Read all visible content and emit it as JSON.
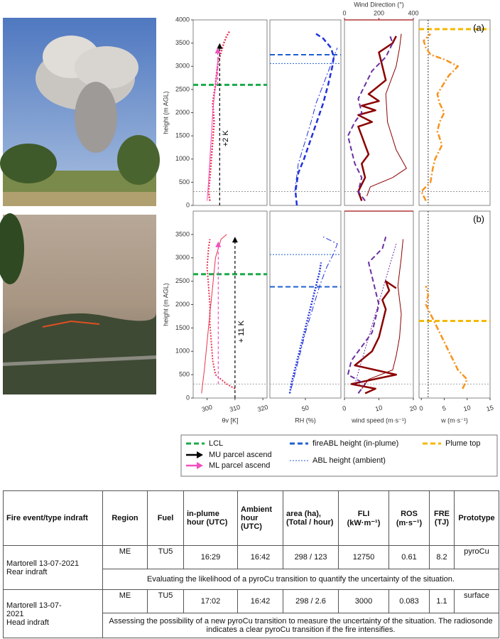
{
  "chart_data": [
    {
      "type": "profile",
      "ylim": [
        0,
        4000
      ],
      "yticks": [
        0,
        500,
        1000,
        1500,
        2000,
        2500,
        3000,
        3500,
        4000
      ],
      "ylabel": "height (m AGL)",
      "xlim": [
        295,
        321.5
      ],
      "series": [
        {
          "color": "#e8334f",
          "width": 2.5,
          "dash": "dotted",
          "values": [
            301,
            300.5,
            301,
            301.5,
            302,
            302.5,
            302,
            303,
            303.5,
            304,
            305,
            306,
            307,
            308
          ],
          "heights": [
            100,
            300,
            600,
            1000,
            1400,
            1800,
            2200,
            2600,
            2900,
            3100,
            3300,
            3500,
            3650,
            3750
          ]
        },
        {
          "color": "#f050c0",
          "width": 1,
          "dash": "solid",
          "values": [
            300,
            300.5,
            301,
            301.5,
            302,
            303,
            304
          ],
          "heights": [
            100,
            500,
            1000,
            1500,
            2000,
            2600,
            3200
          ]
        }
      ],
      "hlines": [
        {
          "value": 2600,
          "color": "#1aab4a",
          "width": 3,
          "dash": "dashed"
        },
        {
          "value": 300,
          "color": "#888",
          "width": 0.8,
          "dash": "dotted"
        }
      ],
      "arrows": [
        {
          "values": [
            304.5,
            304.5
          ],
          "heights": [
            0,
            3500
          ],
          "color": "#000",
          "label": "+2 K"
        },
        {
          "values": [
            303.8,
            303.8
          ],
          "heights": [
            2600,
            3400
          ],
          "color": "#f050c0"
        }
      ]
    },
    {
      "type": "profile",
      "ylim": [
        0,
        4000
      ],
      "xlim": [
        0,
        100
      ],
      "series": [
        {
          "color": "#2233dd",
          "width": 2.5,
          "dash": "dashed",
          "values": [
            38,
            36,
            40,
            48,
            57,
            66,
            75,
            82,
            88,
            90,
            86,
            75,
            65
          ],
          "heights": [
            0,
            300,
            700,
            1000,
            1400,
            1800,
            2200,
            2600,
            3000,
            3200,
            3400,
            3600,
            3700
          ]
        },
        {
          "color": "#2233dd",
          "width": 1,
          "dash": "dashdot",
          "values": [
            35,
            40,
            50,
            58,
            65,
            75,
            85,
            95
          ],
          "heights": [
            300,
            900,
            1400,
            1800,
            2200,
            2600,
            3000,
            3400
          ]
        }
      ],
      "hlines": [
        {
          "value": 3250,
          "color": "#1f5fd0",
          "width": 2,
          "dash": "dashed"
        },
        {
          "value": 3060,
          "color": "#1f5fd0",
          "width": 1,
          "dash": "dotted"
        },
        {
          "value": 300,
          "color": "#888",
          "width": 0.8,
          "dash": "dotted"
        }
      ]
    },
    {
      "type": "profile",
      "ylim": [
        0,
        4000
      ],
      "xlim": [
        0,
        20
      ],
      "x2lim": [
        0,
        400
      ],
      "x2ticks": [
        0,
        200,
        400
      ],
      "x2label": "Wind Direction (°)",
      "x2color": "#a01010",
      "series": [
        {
          "color": "#8b0000",
          "width": 2.5,
          "dash": "solid",
          "values": [
            5,
            4,
            6,
            5,
            7,
            6,
            5,
            4,
            8,
            4,
            9,
            5,
            10,
            7,
            12,
            11,
            10,
            14,
            15
          ],
          "heights": [
            100,
            300,
            600,
            900,
            1100,
            1300,
            1500,
            1700,
            1800,
            1950,
            2050,
            2150,
            2250,
            2400,
            2700,
            3000,
            3300,
            3500,
            3650
          ]
        },
        {
          "color": "#6a2fa0",
          "width": 2,
          "dash": "dashed",
          "values": [
            6,
            4,
            5,
            3,
            2,
            1,
            3,
            5,
            4,
            6,
            8,
            12,
            14,
            13
          ],
          "heights": [
            100,
            300,
            600,
            900,
            1200,
            1500,
            1800,
            2000,
            2300,
            2600,
            2900,
            3200,
            3500,
            3700
          ]
        },
        {
          "color": "#8b0000",
          "width": 1,
          "dash": "solid",
          "axis": "x2",
          "values": [
            130,
            150,
            280,
            360,
            300,
            250,
            240,
            300,
            320,
            330
          ],
          "heights": [
            200,
            400,
            600,
            800,
            1200,
            1800,
            2400,
            3000,
            3400,
            3700
          ]
        }
      ],
      "hlines": [
        {
          "value": 300,
          "color": "#888",
          "width": 0.8,
          "dash": "dotted"
        }
      ]
    },
    {
      "type": "profile",
      "ylim": [
        0,
        4000
      ],
      "xlim": [
        -0.5,
        15
      ],
      "label": "(a)",
      "series": [
        {
          "color": "#f7931e",
          "width": 2.5,
          "dash": "dashdot",
          "values": [
            1,
            0,
            2,
            2.5,
            3,
            4.5,
            3.5,
            4,
            5,
            4,
            3.5,
            6,
            8,
            5,
            2,
            1,
            0.5,
            2
          ],
          "heights": [
            100,
            300,
            500,
            800,
            1000,
            1300,
            1600,
            1800,
            2000,
            2200,
            2400,
            2800,
            3000,
            3150,
            3250,
            3400,
            3550,
            3700
          ]
        }
      ],
      "hlines": [
        {
          "value": 3800,
          "color": "#f5b800",
          "width": 3,
          "dash": "dashed"
        },
        {
          "value": 300,
          "color": "#888",
          "width": 0.8,
          "dash": "dotted"
        }
      ],
      "vlines": [
        {
          "value": 1.5,
          "color": "#000",
          "width": 0.8,
          "dash": "dotted"
        }
      ]
    },
    {
      "type": "profile",
      "ylim": [
        0,
        4000
      ],
      "yticks": [
        0,
        500,
        1000,
        1500,
        2000,
        2500,
        3000,
        3500
      ],
      "ylabel": "height (m AGL)",
      "xlim": [
        295,
        321.5
      ],
      "xticks": [
        300,
        310,
        320
      ],
      "xlabel": "θv [K]",
      "series": [
        {
          "color": "#e8334f",
          "width": 2,
          "dash": "dotted",
          "values": [
            310,
            307,
            305,
            303,
            302,
            301.5,
            301,
            301,
            300.5,
            300,
            300.5,
            301
          ],
          "heights": [
            200,
            300,
            400,
            500,
            800,
            1200,
            1600,
            2000,
            2400,
            2800,
            3200,
            3400
          ]
        },
        {
          "color": "#e8334f",
          "width": 1,
          "dash": "solid",
          "values": [
            298,
            299,
            300,
            301,
            302,
            303,
            305,
            307
          ],
          "heights": [
            100,
            600,
            1200,
            1800,
            2400,
            3000,
            3400,
            3500
          ]
        }
      ],
      "hlines": [
        {
          "value": 2650,
          "color": "#1aab4a",
          "width": 3,
          "dash": "dashed"
        },
        {
          "value": 300,
          "color": "#888",
          "width": 0.8,
          "dash": "dotted"
        }
      ],
      "arrows": [
        {
          "values": [
            310,
            310
          ],
          "heights": [
            0,
            3450
          ],
          "color": "#000",
          "label": "+ 11 K"
        },
        {
          "values": [
            304,
            304
          ],
          "heights": [
            300,
            3350
          ],
          "color": "#f050c0"
        }
      ]
    },
    {
      "type": "profile",
      "ylim": [
        0,
        4000
      ],
      "xlim": [
        0,
        100
      ],
      "xticks": [
        50
      ],
      "xlabel": "RH (%)",
      "series": [
        {
          "color": "#2233dd",
          "width": 2.5,
          "dash": "dotted",
          "values": [
            28,
            30,
            35,
            40,
            45,
            50,
            55,
            60,
            65,
            70,
            72
          ],
          "heights": [
            100,
            300,
            600,
            900,
            1200,
            1500,
            1800,
            2100,
            2400,
            2700,
            2900
          ]
        },
        {
          "color": "#2233dd",
          "width": 1,
          "dash": "dashdot",
          "values": [
            30,
            40,
            50,
            60,
            70,
            80,
            90,
            95,
            75
          ],
          "heights": [
            200,
            800,
            1400,
            1900,
            2400,
            2800,
            3100,
            3300,
            3450
          ]
        }
      ],
      "hlines": [
        {
          "value": 2380,
          "color": "#1f5fd0",
          "width": 2,
          "dash": "dashed"
        },
        {
          "value": 3070,
          "color": "#1f5fd0",
          "width": 1,
          "dash": "dotted"
        },
        {
          "value": 300,
          "color": "#888",
          "width": 0.8,
          "dash": "dotted"
        }
      ]
    },
    {
      "type": "profile",
      "ylim": [
        0,
        4000
      ],
      "xlim": [
        0,
        20
      ],
      "xticks": [
        0,
        10,
        20
      ],
      "xlabel": "wind speed (m·s⁻¹)",
      "x2lim": [
        0,
        400
      ],
      "x2color": "#a01010",
      "series": [
        {
          "color": "#8b0000",
          "width": 2.5,
          "dash": "solid",
          "values": [
            6,
            9,
            2,
            15,
            3,
            8,
            10,
            11,
            12,
            11,
            13,
            12,
            15
          ],
          "heights": [
            100,
            200,
            300,
            500,
            700,
            1000,
            1300,
            1600,
            1900,
            2100,
            2300,
            2500,
            2350
          ]
        },
        {
          "color": "#6a2fa0",
          "width": 2,
          "dash": "dashed",
          "values": [
            4,
            6,
            1,
            2,
            5,
            8,
            9,
            10,
            9,
            8,
            7,
            11,
            12
          ],
          "heights": [
            100,
            300,
            500,
            800,
            1100,
            1400,
            1700,
            2000,
            2300,
            2600,
            2900,
            3200,
            3450
          ]
        },
        {
          "color": "#6a2fa0",
          "width": 1,
          "dash": "dotted",
          "values": [
            3,
            5,
            7,
            9,
            11,
            13,
            15
          ],
          "heights": [
            300,
            800,
            1300,
            1800,
            2300,
            2800,
            3300
          ]
        },
        {
          "color": "#8b0000",
          "width": 1,
          "dash": "solid",
          "axis": "x2",
          "values": [
            100,
            140,
            280,
            300,
            320,
            330,
            310,
            330,
            340
          ],
          "heights": [
            200,
            400,
            600,
            900,
            1300,
            1800,
            2400,
            3000,
            3400
          ]
        }
      ],
      "hlines": [
        {
          "value": 300,
          "color": "#888",
          "width": 0.8,
          "dash": "dotted"
        }
      ]
    },
    {
      "type": "profile",
      "ylim": [
        0,
        4000
      ],
      "xlim": [
        -0.5,
        15
      ],
      "xticks": [
        0,
        5,
        10,
        15
      ],
      "xlabel": "w (m·s⁻¹)",
      "label": "(b)",
      "series": [
        {
          "color": "#f7931e",
          "width": 2.5,
          "dash": "dashdot",
          "values": [
            9,
            10,
            8,
            7,
            6,
            5,
            4,
            3,
            2,
            1,
            1.5,
            1
          ],
          "heights": [
            200,
            400,
            600,
            800,
            1000,
            1200,
            1400,
            1600,
            1800,
            2000,
            2200,
            2400
          ]
        }
      ],
      "hlines": [
        {
          "value": 1650,
          "color": "#f5b800",
          "width": 3,
          "dash": "dashed"
        },
        {
          "value": 300,
          "color": "#888",
          "width": 0.8,
          "dash": "dotted"
        }
      ],
      "vlines": [
        {
          "value": 1.5,
          "color": "#000",
          "width": 0.8,
          "dash": "dotted"
        }
      ]
    }
  ],
  "legend": {
    "items": [
      {
        "name": "LCL",
        "color": "#1aab4a",
        "kind": "line",
        "dash": "dashed"
      },
      {
        "name": "MU parcel ascend",
        "color": "#000",
        "kind": "arrow",
        "dash": "solid"
      },
      {
        "name": "ML parcel ascend",
        "color": "#f050c0",
        "kind": "arrow",
        "dash": "solid"
      },
      {
        "name": "fireABL height (in-plume)",
        "color": "#1f5fd0",
        "kind": "line",
        "dash": "dashed"
      },
      {
        "name": "ABL height (ambient)",
        "color": "#1f5fd0",
        "kind": "thin",
        "dash": "dotted"
      },
      {
        "name": "Plume top",
        "color": "#f5b800",
        "kind": "line",
        "dash": "dashed"
      }
    ]
  },
  "table": {
    "header": [
      "Fire event/type indraft",
      "Region",
      "Fuel",
      "in-plume hour (UTC)",
      "Ambient hour (UTC)",
      "area (ha), (Total / hour)",
      "FLI (kW·m⁻¹)",
      "ROS (m·s⁻¹)",
      "FRE (TJ)",
      "Prototype"
    ],
    "rows": [
      {
        "event": [
          "Martorell 13-07-2021",
          "Rear indraft"
        ],
        "cells": [
          "ME",
          "TU5",
          "16:29",
          "16:42",
          "298 / 123",
          "12750",
          "0.61",
          "8.2",
          "pyroCu"
        ],
        "note": "Evaluating the likelihood of a pyroCu transition to quantify the uncertainty of the situation."
      },
      {
        "event": [
          "Martorell 13-07-",
          "2021",
          "Head indraft"
        ],
        "cells": [
          "ME",
          "TU5",
          "17:02",
          "16:42",
          "298 / 2.6",
          "3000",
          "0.083",
          "1.1",
          "surface"
        ],
        "note": "Assessing the possibility of a new pyroCu transition to measure the uncertainty of the situation. The radiosonde indicates a clear pyroCu transition if the fire intensifies."
      }
    ]
  }
}
